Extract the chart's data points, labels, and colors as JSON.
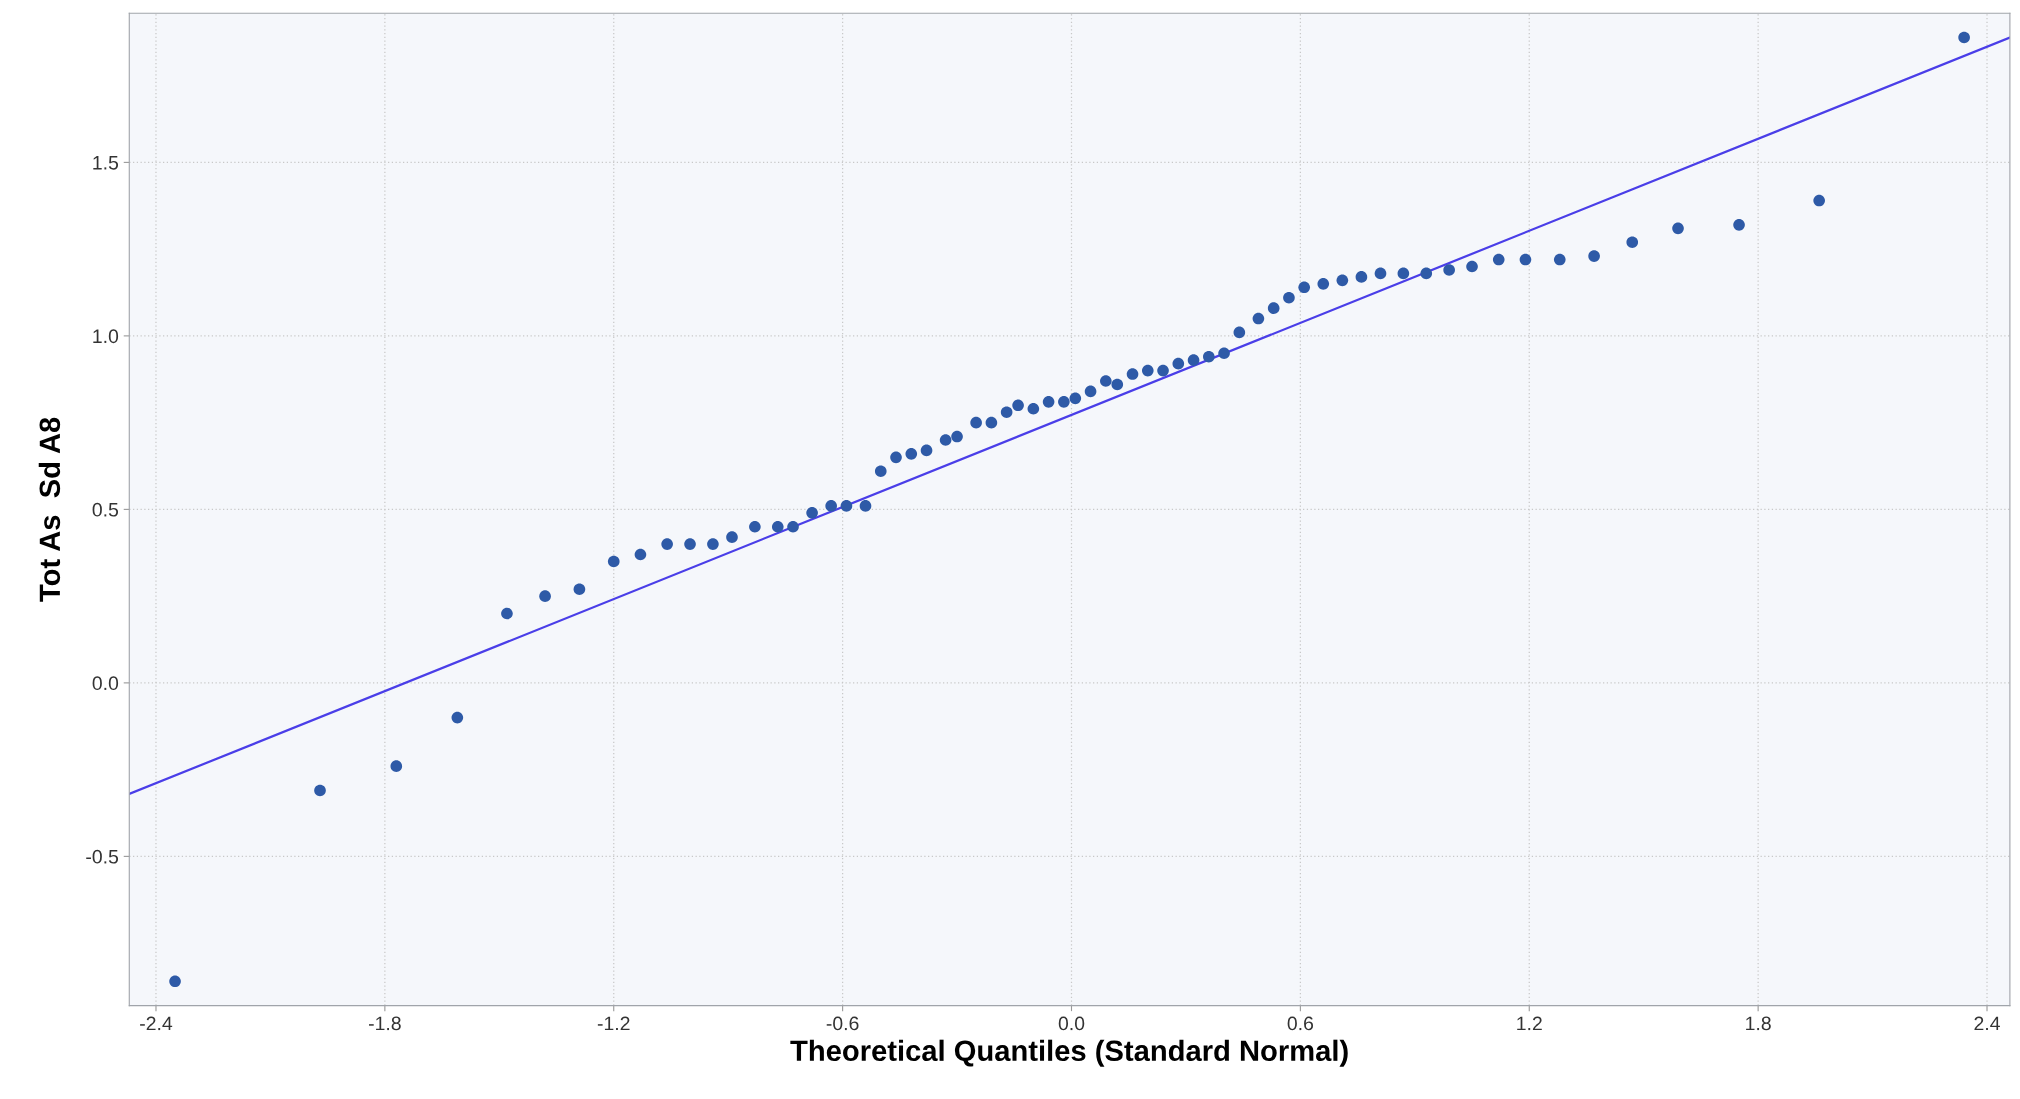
{
  "chart_data": {
    "type": "scatter",
    "xlabel": "Theoretical Quantiles (Standard Normal)",
    "ylabel": "Tot As  Sd A8",
    "xlim": [
      -2.47,
      2.46
    ],
    "ylim": [
      -0.93,
      1.93
    ],
    "xticks": [
      -2.4,
      -1.8,
      -1.2,
      -0.6,
      {
        "value": 0,
        "label": "0.0"
      },
      0.6,
      1.2,
      1.8,
      2.4
    ],
    "yticks": [
      -0.5,
      {
        "value": 0,
        "label": "0.0"
      },
      0.5,
      {
        "value": 1,
        "label": "1.0"
      },
      1.5
    ],
    "grid": true,
    "marker": "circle",
    "series": [
      {
        "color": "#2e5aa7",
        "x": [
          -2.35,
          -1.97,
          -1.77,
          -1.61,
          -1.48,
          -1.38,
          -1.29,
          -1.2,
          -1.13,
          -1.06,
          -1.0,
          -0.94,
          -0.89,
          -0.83,
          -0.77,
          -0.73,
          -0.68,
          -0.63,
          -0.59,
          -0.54,
          -0.5,
          -0.46,
          -0.42,
          -0.38,
          -0.33,
          -0.3,
          -0.25,
          -0.21,
          -0.17,
          -0.14,
          -0.1,
          -0.06,
          -0.02,
          0.01,
          0.05,
          0.09,
          0.12,
          0.16,
          0.2,
          0.24,
          0.28,
          0.32,
          0.36,
          0.4,
          0.44,
          0.49,
          0.53,
          0.57,
          0.61,
          0.66,
          0.71,
          0.76,
          0.81,
          0.87,
          0.93,
          0.99,
          1.05,
          1.12,
          1.19,
          1.28,
          1.37,
          1.47,
          1.59,
          1.75,
          1.96,
          2.34
        ],
        "values": [
          -0.86,
          -0.31,
          -0.24,
          -0.1,
          0.2,
          0.25,
          0.27,
          0.35,
          0.37,
          0.4,
          0.4,
          0.4,
          0.42,
          0.45,
          0.45,
          0.45,
          0.49,
          0.51,
          0.51,
          0.51,
          0.61,
          0.65,
          0.66,
          0.67,
          0.7,
          0.71,
          0.75,
          0.75,
          0.78,
          0.8,
          0.79,
          0.81,
          0.81,
          0.82,
          0.84,
          0.87,
          0.86,
          0.89,
          0.9,
          0.9,
          0.92,
          0.93,
          0.94,
          0.95,
          1.01,
          1.05,
          1.08,
          1.11,
          1.14,
          1.15,
          1.16,
          1.17,
          1.18,
          1.18,
          1.18,
          1.19,
          1.2,
          1.22,
          1.22,
          1.22,
          1.23,
          1.27,
          1.31,
          1.32,
          1.39,
          1.86
        ]
      },
      {
        "type": "line",
        "color": "#4a3ee8",
        "marker": "none",
        "x": [
          -2.47,
          2.46
        ],
        "values": [
          -0.32,
          1.86
        ]
      }
    ]
  }
}
